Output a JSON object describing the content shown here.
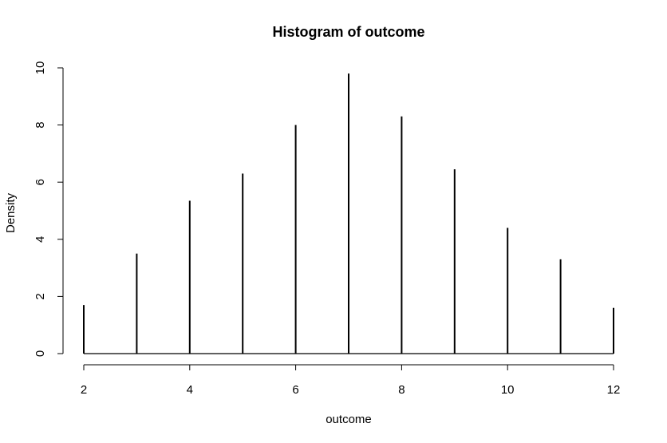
{
  "chart_data": {
    "type": "bar",
    "title": "Histogram of outcome",
    "xlabel": "outcome",
    "ylabel": "Density",
    "xlim": [
      2,
      12
    ],
    "ylim": [
      0,
      10
    ],
    "xticks": [
      "2",
      "4",
      "6",
      "8",
      "10",
      "12"
    ],
    "yticks": [
      "0",
      "2",
      "4",
      "6",
      "8",
      "10"
    ],
    "x": [
      2,
      3,
      4,
      5,
      6,
      7,
      8,
      9,
      10,
      11,
      12
    ],
    "values": [
      1.7,
      3.5,
      5.35,
      6.3,
      8.0,
      9.8,
      8.3,
      6.45,
      4.4,
      3.3,
      1.6
    ],
    "grid": false,
    "bar_color": "#000000"
  }
}
